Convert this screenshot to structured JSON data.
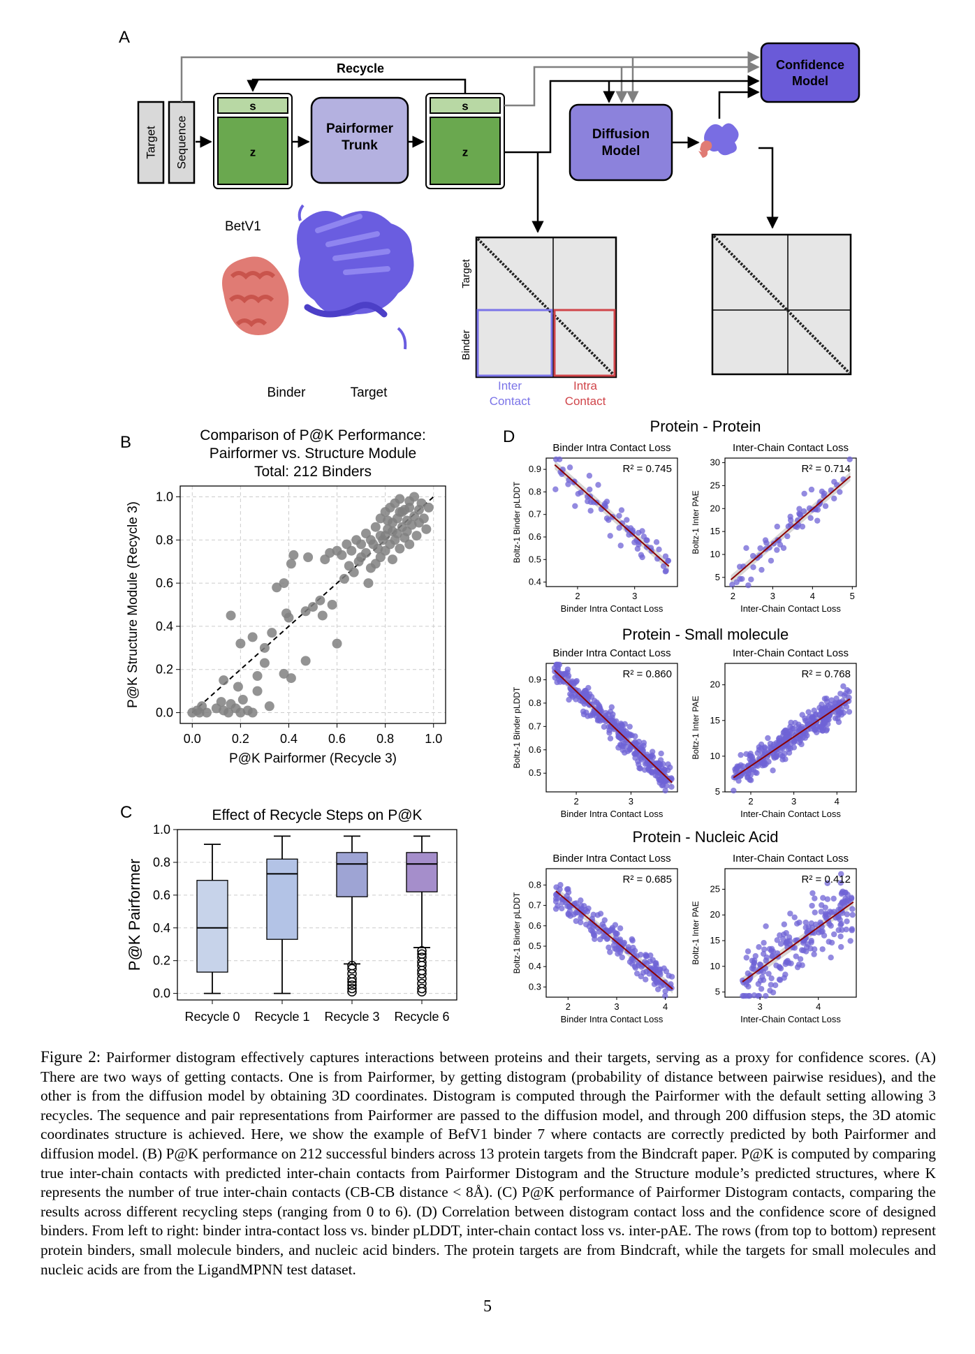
{
  "panel_a": {
    "letter": "A",
    "input_target": "Target",
    "input_sequence": "Sequence",
    "s_label": "s",
    "z_label": "z",
    "recycle_label": "Recycle",
    "pairformer_line1": "Pairformer",
    "pairformer_line2": "Trunk",
    "diffusion_line1": "Diffusion",
    "diffusion_line2": "Model",
    "confidence_line1": "Confidence",
    "confidence_line2": "Model",
    "protein_name": "BetV1",
    "binder_label": "Binder",
    "target_label": "Target",
    "map_target_axis": "Target",
    "map_binder_axis": "Binder",
    "inter_line1": "Inter",
    "inter_line2": "Contact",
    "intra_line1": "Intra",
    "intra_line2": "Contact",
    "colors": {
      "input": "#d9d9d9",
      "s_block": "#b8d8a4",
      "z_block": "#6aa84f",
      "pairformer": "#b4b1e0",
      "diffusion": "#8c82dc",
      "confidence": "#6a5ad8",
      "binder": "#e07b74",
      "target": "#6a5de0",
      "inter": "#7b74e8",
      "intra": "#d0454a"
    }
  },
  "panel_b": {
    "letter": "B",
    "chart_data": {
      "type": "scatter",
      "title": "Comparison of P@K Performance:",
      "title_line2": "Pairformer vs. Structure Module",
      "title_line3": "Total: 212 Binders",
      "xlabel": "P@K Pairformer (Recycle 3)",
      "ylabel": "P@K Structure Module (Recycle 3)",
      "xlim": [
        -0.05,
        1.05
      ],
      "ylim": [
        -0.05,
        1.05
      ],
      "xticks": [
        "0.0",
        "0.2",
        "0.4",
        "0.6",
        "0.8",
        "1.0"
      ],
      "yticks": [
        "0.0",
        "0.2",
        "0.4",
        "0.6",
        "0.8",
        "1.0"
      ],
      "grid": true,
      "reference_line": "y = x (dashed)",
      "point_color": "#808080",
      "points": [
        [
          0.0,
          0.0
        ],
        [
          0.02,
          0.01
        ],
        [
          0.03,
          0.0
        ],
        [
          0.04,
          0.03
        ],
        [
          0.06,
          0.0
        ],
        [
          0.1,
          0.02
        ],
        [
          0.12,
          0.05
        ],
        [
          0.13,
          0.01
        ],
        [
          0.15,
          0.0
        ],
        [
          0.16,
          0.04
        ],
        [
          0.18,
          0.02
        ],
        [
          0.2,
          0.0
        ],
        [
          0.21,
          0.06
        ],
        [
          0.23,
          0.01
        ],
        [
          0.25,
          0.0
        ],
        [
          0.32,
          0.03
        ],
        [
          0.27,
          0.1
        ],
        [
          0.13,
          0.15
        ],
        [
          0.19,
          0.12
        ],
        [
          0.27,
          0.17
        ],
        [
          0.3,
          0.23
        ],
        [
          0.38,
          0.18
        ],
        [
          0.41,
          0.16
        ],
        [
          0.47,
          0.24
        ],
        [
          0.3,
          0.3
        ],
        [
          0.25,
          0.35
        ],
        [
          0.2,
          0.32
        ],
        [
          0.33,
          0.37
        ],
        [
          0.16,
          0.45
        ],
        [
          0.39,
          0.46
        ],
        [
          0.4,
          0.44
        ],
        [
          0.47,
          0.47
        ],
        [
          0.5,
          0.49
        ],
        [
          0.54,
          0.45
        ],
        [
          0.58,
          0.5
        ],
        [
          0.53,
          0.52
        ],
        [
          0.6,
          0.32
        ],
        [
          0.35,
          0.58
        ],
        [
          0.38,
          0.6
        ],
        [
          0.41,
          0.69
        ],
        [
          0.42,
          0.73
        ],
        [
          0.48,
          0.72
        ],
        [
          0.55,
          0.71
        ],
        [
          0.57,
          0.74
        ],
        [
          0.6,
          0.75
        ],
        [
          0.62,
          0.73
        ],
        [
          0.63,
          0.62
        ],
        [
          0.65,
          0.68
        ],
        [
          0.67,
          0.65
        ],
        [
          0.69,
          0.7
        ],
        [
          0.7,
          0.72
        ],
        [
          0.72,
          0.74
        ],
        [
          0.73,
          0.6
        ],
        [
          0.74,
          0.67
        ],
        [
          0.75,
          0.78
        ],
        [
          0.76,
          0.69
        ],
        [
          0.77,
          0.76
        ],
        [
          0.78,
          0.72
        ],
        [
          0.79,
          0.8
        ],
        [
          0.8,
          0.82
        ],
        [
          0.8,
          0.75
        ],
        [
          0.81,
          0.85
        ],
        [
          0.82,
          0.78
        ],
        [
          0.83,
          0.88
        ],
        [
          0.83,
          0.71
        ],
        [
          0.84,
          0.8
        ],
        [
          0.85,
          0.9
        ],
        [
          0.85,
          0.83
        ],
        [
          0.86,
          0.76
        ],
        [
          0.87,
          0.86
        ],
        [
          0.87,
          0.93
        ],
        [
          0.88,
          0.81
        ],
        [
          0.89,
          0.89
        ],
        [
          0.89,
          0.84
        ],
        [
          0.9,
          0.95
        ],
        [
          0.9,
          0.78
        ],
        [
          0.91,
          0.87
        ],
        [
          0.92,
          1.0
        ],
        [
          0.92,
          0.91
        ],
        [
          0.93,
          0.82
        ],
        [
          0.94,
          0.94
        ],
        [
          0.94,
          0.88
        ],
        [
          0.95,
          0.97
        ],
        [
          0.96,
          0.9
        ],
        [
          0.97,
          0.85
        ],
        [
          0.98,
          0.95
        ],
        [
          0.72,
          0.83
        ],
        [
          0.76,
          0.86
        ],
        [
          0.78,
          0.9
        ],
        [
          0.8,
          0.93
        ],
        [
          0.82,
          0.95
        ],
        [
          0.84,
          0.97
        ],
        [
          0.86,
          0.99
        ],
        [
          0.74,
          0.8
        ],
        [
          0.7,
          0.78
        ],
        [
          0.68,
          0.8
        ],
        [
          0.66,
          0.75
        ],
        [
          0.64,
          0.78
        ],
        [
          0.88,
          0.94
        ],
        [
          0.9,
          0.98
        ],
        [
          0.86,
          0.93
        ],
        [
          0.78,
          0.82
        ],
        [
          0.81,
          0.89
        ],
        [
          0.83,
          0.84
        ]
      ]
    }
  },
  "panel_c": {
    "letter": "C",
    "chart_data": {
      "type": "box",
      "title": "Effect of Recycle Steps on P@K",
      "ylabel": "P@K Pairformer",
      "ylim": [
        -0.04,
        1.0
      ],
      "yticks": [
        "0.0",
        "0.2",
        "0.4",
        "0.6",
        "0.8",
        "1.0"
      ],
      "categories": [
        "Recycle 0",
        "Recycle 1",
        "Recycle 3",
        "Recycle 6"
      ],
      "grid": true,
      "boxes": [
        {
          "min": 0.0,
          "q1": 0.13,
          "median": 0.4,
          "q3": 0.69,
          "max": 0.91,
          "color": "#c7d3ea",
          "outliers": []
        },
        {
          "min": 0.0,
          "q1": 0.33,
          "median": 0.73,
          "q3": 0.82,
          "max": 0.96,
          "color": "#b3c3e6",
          "outliers": []
        },
        {
          "min": 0.18,
          "q1": 0.59,
          "median": 0.79,
          "q3": 0.86,
          "max": 0.96,
          "color": "#9ea4d4",
          "outliers": [
            0.17,
            0.15,
            0.12,
            0.09,
            0.07,
            0.05,
            0.03,
            0.01
          ]
        },
        {
          "min": 0.28,
          "q1": 0.62,
          "median": 0.79,
          "q3": 0.86,
          "max": 0.96,
          "color": "#a58ecb",
          "outliers": [
            0.26,
            0.24,
            0.22,
            0.19,
            0.17,
            0.14,
            0.12,
            0.09,
            0.06,
            0.03,
            0.01
          ]
        }
      ]
    }
  },
  "panel_d": {
    "letter": "D",
    "row_titles": [
      "Protein - Protein",
      "Protein - Small molecule",
      "Protein - Nucleic Acid"
    ],
    "chart_data": [
      {
        "type": "scatter",
        "title": "Binder Intra Contact Loss",
        "xlabel": "Binder Intra Contact Loss",
        "ylabel": "Boltz-1 Binder pLDDT",
        "annotation": "R² = 0.745",
        "xlim": [
          1.45,
          3.75
        ],
        "ylim": [
          0.38,
          0.95
        ],
        "xticks": [
          2,
          3
        ],
        "yticks": [
          0.4,
          0.5,
          0.6,
          0.7,
          0.8,
          0.9
        ],
        "ytick_labels": [
          "0.4",
          "0.5",
          "0.6",
          "0.7",
          "0.8",
          "0.9"
        ],
        "fit": [
          [
            1.6,
            0.92
          ],
          [
            3.6,
            0.47
          ]
        ],
        "n_points": 70,
        "seed": 11,
        "noise": 0.07
      },
      {
        "type": "scatter",
        "title": "Inter-Chain Contact Loss",
        "xlabel": "Inter-Chain Contact Loss",
        "ylabel": "Boltz-1 Inter PAE",
        "annotation": "R² = 0.714",
        "xlim": [
          1.8,
          5.1
        ],
        "ylim": [
          3,
          31
        ],
        "xticks": [
          2,
          3,
          4,
          5
        ],
        "yticks": [
          5,
          10,
          15,
          20,
          25,
          30
        ],
        "ytick_labels": [
          "5",
          "10",
          "15",
          "20",
          "25",
          "30"
        ],
        "fit": [
          [
            1.95,
            4.5
          ],
          [
            4.95,
            27
          ]
        ],
        "n_points": 65,
        "seed": 23,
        "noise": 3.2
      },
      {
        "type": "scatter",
        "title": "Binder Intra Contact Loss",
        "xlabel": "Binder Intra Contact Loss",
        "ylabel": "Boltz-1 Binder pLDDT",
        "annotation": "R² = 0.860",
        "xlim": [
          1.45,
          3.85
        ],
        "ylim": [
          0.42,
          0.97
        ],
        "xticks": [
          2,
          3
        ],
        "yticks": [
          0.5,
          0.6,
          0.7,
          0.8,
          0.9
        ],
        "ytick_labels": [
          "0.5",
          "0.6",
          "0.7",
          "0.8",
          "0.9"
        ],
        "fit": [
          [
            1.6,
            0.94
          ],
          [
            3.75,
            0.46
          ]
        ],
        "n_points": 320,
        "seed": 37,
        "noise": 0.045
      },
      {
        "type": "scatter",
        "title": "Inter-Chain Contact Loss",
        "xlabel": "Inter-Chain Contact Loss",
        "ylabel": "Boltz-1 Inter PAE",
        "annotation": "R² = 0.768",
        "xlim": [
          1.4,
          4.45
        ],
        "ylim": [
          5,
          23
        ],
        "xticks": [
          2,
          3,
          4
        ],
        "yticks": [
          5,
          10,
          15,
          20
        ],
        "ytick_labels": [
          "5",
          "10",
          "15",
          "20"
        ],
        "fit": [
          [
            1.6,
            7.0
          ],
          [
            4.3,
            18.0
          ]
        ],
        "n_points": 320,
        "seed": 41,
        "noise": 1.6
      },
      {
        "type": "scatter",
        "title": "Binder Intra Contact Loss",
        "xlabel": "Binder Intra Contact Loss",
        "ylabel": "Boltz-1 Binder pLDDT",
        "annotation": "R² = 0.685",
        "xlim": [
          1.55,
          4.25
        ],
        "ylim": [
          0.25,
          0.88
        ],
        "xticks": [
          2,
          3,
          4
        ],
        "yticks": [
          0.3,
          0.4,
          0.5,
          0.6,
          0.7,
          0.8
        ],
        "ytick_labels": [
          "0.3",
          "0.4",
          "0.5",
          "0.6",
          "0.7",
          "0.8"
        ],
        "fit": [
          [
            1.75,
            0.77
          ],
          [
            4.15,
            0.29
          ]
        ],
        "n_points": 200,
        "seed": 53,
        "noise": 0.06
      },
      {
        "type": "scatter",
        "title": "Inter-Chain Contact Loss",
        "xlabel": "Inter-Chain Contact Loss",
        "ylabel": "Boltz-1 Inter PAE",
        "annotation": "R² = 0.412",
        "xlim": [
          2.4,
          4.65
        ],
        "ylim": [
          4,
          29
        ],
        "xticks": [
          3,
          4
        ],
        "yticks": [
          5,
          10,
          15,
          20,
          25
        ],
        "ytick_labels": [
          "5",
          "10",
          "15",
          "20",
          "25"
        ],
        "fit": [
          [
            2.7,
            7
          ],
          [
            4.6,
            22.5
          ]
        ],
        "n_points": 210,
        "seed": 67,
        "noise": 4.5
      }
    ],
    "point_color": "#6f63d6",
    "fit_color": "#8b0000"
  },
  "caption": {
    "label": "Figure 2:",
    "text": "Pairformer distogram effectively captures interactions between proteins and their targets, serving as a proxy for confidence scores. (A) There are two ways of getting contacts. One is from Pairformer, by getting distogram (probability of distance between pairwise residues), and the other is from the diffusion model by obtaining 3D coordinates. Distogram is computed through the Pairformer with the default setting allowing 3 recycles. The sequence and pair representations from Pairformer are passed to the diffusion model, and through 200 diffusion steps, the 3D atomic coordinates structure is achieved. Here, we show the example of BefV1 binder 7 where contacts are correctly predicted by both Pairformer and diffusion model. (B) P@K performance on 212 successful binders across 13 protein targets from the Bindcraft paper. P@K is computed by comparing true inter-chain contacts with predicted inter-chain contacts from Pairformer Distogram and the Structure module’s predicted structures, where K represents the number of true inter-chain contacts (CB-CB distance < 8Å). (C) P@K performance of Pairformer Distogram contacts, comparing the results across different recycling steps (ranging from 0 to 6). (D) Correlation between distogram contact loss and the confidence score of designed binders. From left to right: binder intra-contact loss vs. binder pLDDT, inter-chain contact loss vs. inter-pAE. The rows (from top to bottom) represent protein binders, small molecule binders, and nucleic acid binders. The protein targets are from Bindcraft, while the targets for small molecules and nucleic acids are from the LigandMPNN test dataset."
  },
  "page_number": "5"
}
